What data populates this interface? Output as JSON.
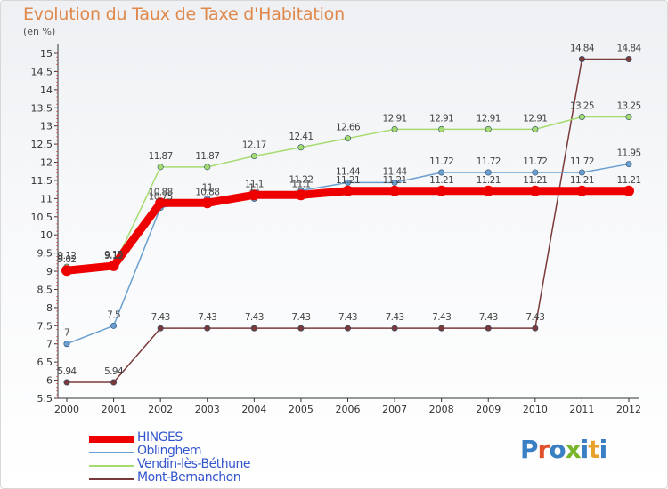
{
  "title": "Evolution du Taux de Taxe d'Habitation",
  "subtitle": "(en %)",
  "logo": {
    "text": "Proxiti",
    "letter_colors": [
      "#3a7fc4",
      "#e0502a",
      "#3a7fc4",
      "#79b52b",
      "#3a7fc4",
      "#e8a12b",
      "#3a7fc4"
    ]
  },
  "chart_data": {
    "type": "line",
    "title": "Evolution du Taux de Taxe d'Habitation",
    "ylabel": "(en %)",
    "xlabel": "",
    "x": [
      "2000",
      "2001",
      "2002",
      "2003",
      "2004",
      "2005",
      "2006",
      "2007",
      "2008",
      "2009",
      "2010",
      "2011",
      "2012"
    ],
    "ylim": [
      5.5,
      15
    ],
    "yticks": [
      "5.5",
      "6",
      "6.5",
      "7",
      "7.5",
      "8",
      "8.5",
      "9",
      "9.5",
      "10",
      "10.5",
      "11",
      "11.5",
      "12",
      "12.5",
      "13",
      "13.5",
      "14",
      "14.5",
      "15"
    ],
    "grid": false,
    "legend_position": "bottom-left",
    "series": [
      {
        "name": "HINGES",
        "color": "#ee0000",
        "values": [
          9.02,
          9.15,
          10.88,
          10.88,
          11.1,
          11.1,
          11.21,
          11.21,
          11.21,
          11.21,
          11.21,
          11.21,
          11.21
        ],
        "labels": [
          "9.02",
          "9.15",
          "10.88",
          "10.88",
          "11.1",
          "11.1",
          "11.21",
          "11.21",
          "11.21",
          "11.21",
          "11.21",
          "11.21",
          "11.21"
        ]
      },
      {
        "name": "Oblinghem",
        "color": "#6a9fd0",
        "values": [
          7,
          7.5,
          10.75,
          11,
          11,
          11.22,
          11.44,
          11.44,
          11.72,
          11.72,
          11.72,
          11.72,
          11.95
        ],
        "labels": [
          "7",
          "7.5",
          "10.75",
          "11",
          "11",
          "11.22",
          "11.44",
          "11.44",
          "11.72",
          "11.72",
          "11.72",
          "11.72",
          "11.95"
        ]
      },
      {
        "name": "Vendin-lès-Béthune",
        "color": "#a6dc6f",
        "values": [
          9.12,
          9.12,
          11.87,
          11.87,
          12.17,
          12.41,
          12.66,
          12.91,
          12.91,
          12.91,
          12.91,
          13.25,
          13.25
        ],
        "labels": [
          "9.12",
          "9.12",
          "11.87",
          "11.87",
          "12.17",
          "12.41",
          "12.66",
          "12.91",
          "12.91",
          "12.91",
          "12.91",
          "13.25",
          "13.25"
        ]
      },
      {
        "name": "Mont-Bernanchon",
        "color": "#7b3a3a",
        "values": [
          5.94,
          5.94,
          7.43,
          7.43,
          7.43,
          7.43,
          7.43,
          7.43,
          7.43,
          7.43,
          7.43,
          14.84,
          14.84
        ],
        "labels": [
          "5.94",
          "5.94",
          "7.43",
          "7.43",
          "7.43",
          "7.43",
          "7.43",
          "7.43",
          "7.43",
          "7.43",
          "7.43",
          "14.84",
          "14.84"
        ]
      }
    ]
  }
}
